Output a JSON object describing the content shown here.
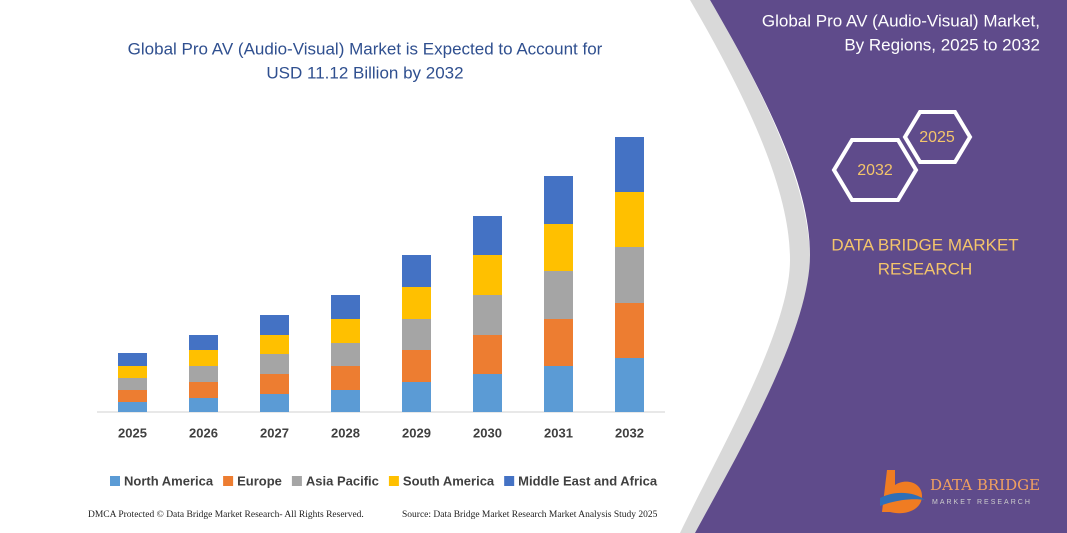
{
  "chart_data": {
    "type": "bar",
    "stacked": true,
    "title": [
      "Global Pro AV (Audio-Visual) Market is Expected to Account for",
      "USD 11.12 Billion by 2032"
    ],
    "categories": [
      "2025",
      "2026",
      "2027",
      "2028",
      "2029",
      "2030",
      "2031",
      "2032"
    ],
    "series": [
      {
        "name": "North America",
        "color": "#5b9bd5",
        "values": [
          10,
          14,
          18,
          22,
          30,
          38,
          46,
          54
        ]
      },
      {
        "name": "Europe",
        "color": "#ed7d31",
        "values": [
          12,
          16,
          20,
          24,
          32,
          39,
          47,
          55
        ]
      },
      {
        "name": "Asia Pacific",
        "color": "#a5a5a5",
        "values": [
          12,
          16,
          20,
          23,
          31,
          40,
          48,
          56
        ]
      },
      {
        "name": "South America",
        "color": "#ffc000",
        "values": [
          12,
          16,
          19,
          24,
          32,
          40,
          47,
          55
        ]
      },
      {
        "name": "Middle East and Africa",
        "color": "#4472c4",
        "values": [
          13,
          15,
          20,
          24,
          32,
          39,
          48,
          55
        ]
      }
    ],
    "ylim": [
      0,
      300
    ],
    "legend": "bottom"
  },
  "side_panel": {
    "title": [
      "Global Pro AV (Audio-Visual) Market,",
      "By Regions, 2025 to 2032"
    ],
    "hexagons": [
      "2025",
      "2032"
    ],
    "brand": [
      "DATA BRIDGE MARKET",
      "RESEARCH"
    ]
  },
  "logo": {
    "name": "DATA BRIDGE",
    "tagline": "MARKET RESEARCH"
  },
  "footer": {
    "left": "DMCA Protected © Data Bridge Market Research- All Rights Reserved.",
    "right": "Source: Data Bridge Market Research Market Analysis Study 2025"
  }
}
